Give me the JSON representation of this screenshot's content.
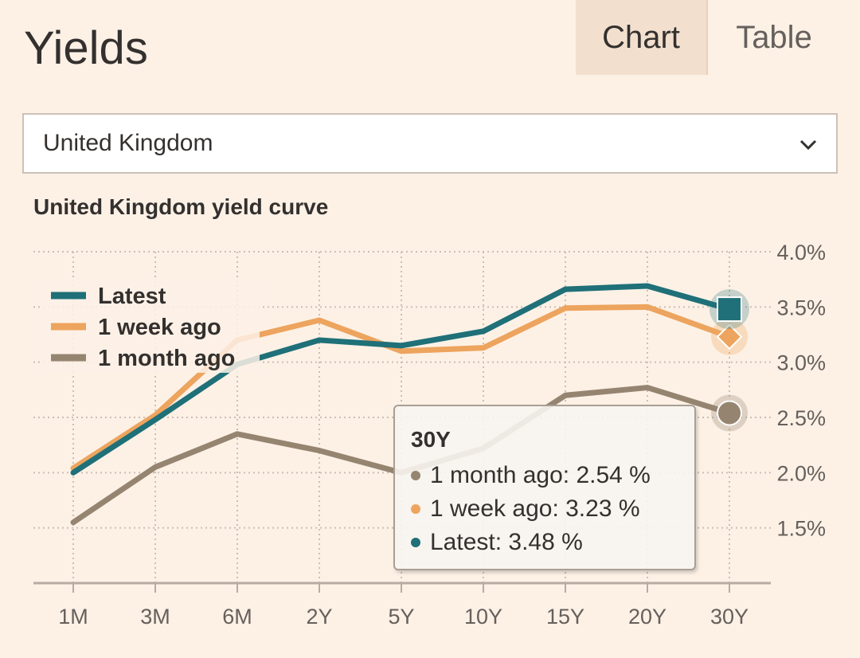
{
  "header": {
    "title": "Yields",
    "tabs": [
      {
        "label": "Chart",
        "active": true
      },
      {
        "label": "Table",
        "active": false
      }
    ]
  },
  "selector": {
    "value": "United Kingdom",
    "icon": "chevron-down-icon"
  },
  "chart_data": {
    "type": "line",
    "title": "United Kingdom yield curve",
    "xlabel": "",
    "ylabel": "",
    "categories": [
      "1M",
      "3M",
      "6M",
      "2Y",
      "5Y",
      "10Y",
      "15Y",
      "20Y",
      "30Y"
    ],
    "ylim": [
      1.0,
      4.0
    ],
    "yticks": [
      1.5,
      2.0,
      2.5,
      3.0,
      3.5,
      4.0
    ],
    "ytick_labels": [
      "1.5%",
      "2.0%",
      "2.5%",
      "3.0%",
      "3.5%",
      "4.0%"
    ],
    "grid": true,
    "legend_position": "top-left",
    "series": [
      {
        "name": "Latest",
        "color": "#1f7078",
        "marker": "square",
        "values": [
          2.0,
          2.48,
          2.98,
          3.2,
          3.15,
          3.28,
          3.66,
          3.69,
          3.48
        ]
      },
      {
        "name": "1 week ago",
        "color": "#eda45e",
        "marker": "diamond",
        "values": [
          2.04,
          2.52,
          3.2,
          3.38,
          3.1,
          3.13,
          3.49,
          3.5,
          3.23
        ]
      },
      {
        "name": "1 month ago",
        "color": "#958570",
        "marker": "circle",
        "values": [
          1.55,
          2.05,
          2.35,
          2.2,
          2.0,
          2.22,
          2.7,
          2.77,
          2.54
        ]
      }
    ],
    "tooltip": {
      "title": "30Y",
      "rows": [
        {
          "label": "1 month ago: 2.54 %",
          "color": "#958570"
        },
        {
          "label": "1 week ago: 3.23 %",
          "color": "#eda45e"
        },
        {
          "label": "Latest: 3.48 %",
          "color": "#1f7078"
        }
      ]
    }
  }
}
